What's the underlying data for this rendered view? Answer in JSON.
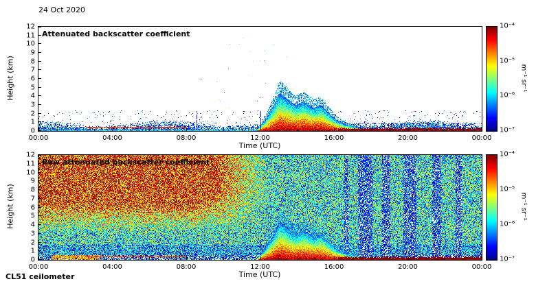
{
  "page": {
    "date_label": "24 Oct 2020",
    "instrument_label": "CL51 ceilometer"
  },
  "chart_data": [
    {
      "type": "heatmap",
      "title": "Attenuated backscatter coefficient",
      "xlabel": "Time (UTC)",
      "ylabel": "Height (km)",
      "x_ticks": [
        "00:00",
        "04:00",
        "08:00",
        "12:00",
        "16:00",
        "20:00",
        "00:00"
      ],
      "y_ticks": [
        0,
        1,
        2,
        3,
        4,
        5,
        6,
        7,
        8,
        9,
        10,
        11,
        12
      ],
      "xlim_hours": [
        0,
        24
      ],
      "ylim_km": [
        0,
        12
      ],
      "grid": false,
      "colorbar": {
        "label": "m⁻¹ sr⁻¹",
        "ticks": [
          "10⁻⁴",
          "10⁻⁵",
          "10⁻⁶",
          "10⁻⁷"
        ],
        "scale": "log10",
        "range_m1sr1": [
          1e-07,
          0.0001
        ]
      },
      "features": {
        "aerosol_top_km": 1.1,
        "morning_streak": {
          "start": 2.6,
          "end": 8.0,
          "height_km": 0.45
        },
        "plume_top_km": [
          [
            11.85,
            0.3
          ],
          [
            12.3,
            1.4
          ],
          [
            12.75,
            3.1
          ],
          [
            13.05,
            4.4
          ],
          [
            13.4,
            3.8
          ],
          [
            13.9,
            3.0
          ],
          [
            14.35,
            3.4
          ],
          [
            14.9,
            2.7
          ],
          [
            15.3,
            3.0
          ],
          [
            15.7,
            2.1
          ],
          [
            16.1,
            1.3
          ],
          [
            16.6,
            0.8
          ],
          [
            17.3,
            0.45
          ]
        ],
        "precip_surface_band": {
          "start": 16.2,
          "end": 24,
          "top_km": 0.35
        },
        "clutter_window": {
          "t": [
            8.3,
            13.6
          ],
          "h": [
            2.5,
            11.5
          ]
        }
      }
    },
    {
      "type": "heatmap",
      "title": "Raw attenuated backscatter coefficient",
      "xlabel": "Time (UTC)",
      "ylabel": "Height (km)",
      "x_ticks": [
        "00:00",
        "04:00",
        "08:00",
        "12:00",
        "16:00",
        "20:00",
        "00:00"
      ],
      "y_ticks": [
        0,
        1,
        2,
        3,
        4,
        5,
        6,
        7,
        8,
        9,
        10,
        11,
        12
      ],
      "xlim_hours": [
        0,
        24
      ],
      "ylim_km": [
        0,
        12
      ],
      "grid": false,
      "colorbar": {
        "label": "m⁻¹ sr⁻¹",
        "ticks": [
          "10⁻⁴",
          "10⁻⁵",
          "10⁻⁶",
          "10⁻⁷"
        ],
        "scale": "log10",
        "range_m1sr1": [
          1e-07,
          0.0001
        ]
      },
      "features": {
        "noise_warm_region": {
          "t_max": 12.5,
          "h_min": 3.0
        },
        "morning_streak": {
          "start": 2.6,
          "end": 8.0,
          "height_km": 0.45
        },
        "plume_top_km": [
          [
            11.85,
            0.3
          ],
          [
            12.3,
            1.4
          ],
          [
            12.75,
            3.1
          ],
          [
            13.05,
            4.4
          ],
          [
            13.4,
            3.8
          ],
          [
            13.9,
            3.0
          ],
          [
            14.35,
            3.4
          ],
          [
            14.9,
            2.7
          ],
          [
            15.3,
            3.0
          ],
          [
            15.7,
            2.1
          ],
          [
            16.1,
            1.3
          ],
          [
            16.6,
            0.8
          ],
          [
            17.3,
            0.45
          ]
        ],
        "precip_surface_band": {
          "start": 16.2,
          "end": 24,
          "top_km": 0.35
        },
        "attenuation_stripes": [
          [
            16.55,
            16.75
          ],
          [
            17.3,
            18.05
          ],
          [
            18.6,
            19.05
          ],
          [
            19.75,
            20.45
          ],
          [
            21.3,
            21.8
          ],
          [
            22.55,
            22.9
          ]
        ]
      }
    }
  ]
}
